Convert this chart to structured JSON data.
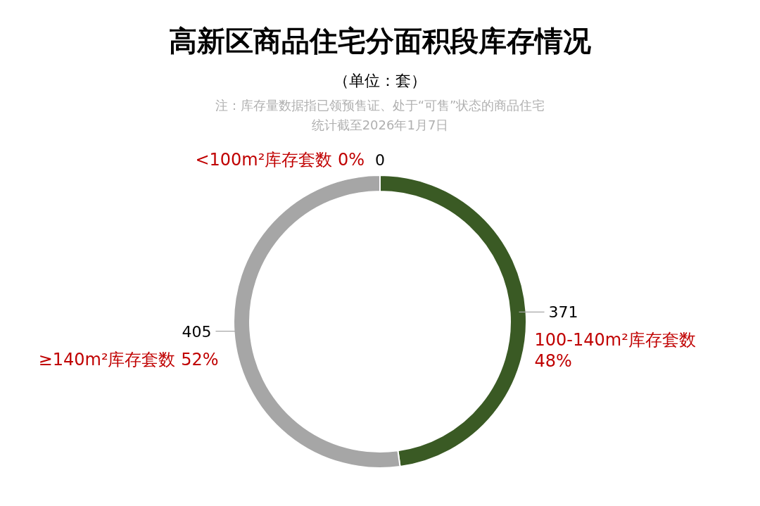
{
  "chart_data": {
    "type": "donut",
    "title": "高新区商品住宅分面积段库存情况",
    "subtitle": "（单位：套）",
    "annotations": [
      "注：库存量数据指已领预售证、处于“可售”状态的商品住宅",
      "统计截至2026年1月7日"
    ],
    "categories": [
      "<100m²库存套数 0%",
      "100-140m²库存套数 48%",
      "≥140m²库存套数 52%"
    ],
    "values": [
      0,
      371,
      405
    ],
    "colors": [
      "#4472c4",
      "#3a5a24",
      "#a6a6a6"
    ],
    "value_labels": [
      "0",
      "371",
      "405"
    ]
  }
}
